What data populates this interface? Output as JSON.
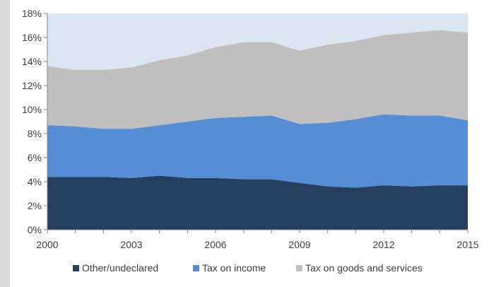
{
  "chart_data": {
    "type": "area",
    "stacked": true,
    "title": "",
    "xlabel": "",
    "ylabel": "",
    "x": [
      2000,
      2001,
      2002,
      2003,
      2004,
      2005,
      2006,
      2007,
      2008,
      2009,
      2010,
      2011,
      2012,
      2013,
      2014,
      2015
    ],
    "x_tick_labels": [
      "2000",
      "2003",
      "2006",
      "2009",
      "2012",
      "2015"
    ],
    "x_tick_values": [
      2000,
      2003,
      2006,
      2009,
      2012,
      2015
    ],
    "y_tick_labels": [
      "0%",
      "2%",
      "4%",
      "6%",
      "8%",
      "10%",
      "12%",
      "14%",
      "16%",
      "18%"
    ],
    "y_tick_values": [
      0,
      2,
      4,
      6,
      8,
      10,
      12,
      14,
      16,
      18
    ],
    "ylim": [
      0,
      18
    ],
    "xlim": [
      2000,
      2015
    ],
    "grid": false,
    "legend_position": "bottom",
    "background_color": "#dce6f2",
    "series": [
      {
        "name": "Other/undeclared",
        "color": "#243f60",
        "values": [
          4.4,
          4.4,
          4.4,
          4.3,
          4.5,
          4.3,
          4.3,
          4.2,
          4.2,
          3.9,
          3.6,
          3.5,
          3.7,
          3.6,
          3.7,
          3.7
        ]
      },
      {
        "name": "Tax on income",
        "color": "#558ed5",
        "values": [
          4.3,
          4.2,
          4.0,
          4.1,
          4.2,
          4.7,
          5.0,
          5.2,
          5.3,
          4.9,
          5.3,
          5.7,
          5.9,
          5.9,
          5.8,
          5.4
        ]
      },
      {
        "name": "Tax on goods and services",
        "color": "#bfbfbf",
        "values": [
          4.9,
          4.7,
          4.9,
          5.1,
          5.4,
          5.5,
          5.9,
          6.2,
          6.1,
          6.1,
          6.5,
          6.5,
          6.6,
          6.9,
          7.1,
          7.3
        ]
      }
    ]
  }
}
